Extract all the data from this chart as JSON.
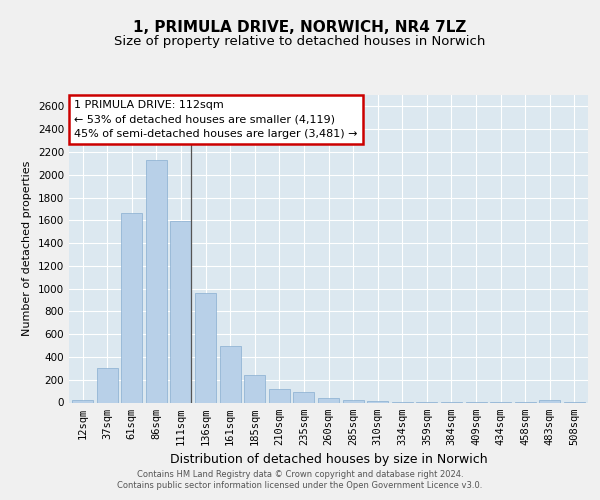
{
  "title_line1": "1, PRIMULA DRIVE, NORWICH, NR4 7LZ",
  "title_line2": "Size of property relative to detached houses in Norwich",
  "xlabel": "Distribution of detached houses by size in Norwich",
  "ylabel": "Number of detached properties",
  "categories": [
    "12sqm",
    "37sqm",
    "61sqm",
    "86sqm",
    "111sqm",
    "136sqm",
    "161sqm",
    "185sqm",
    "210sqm",
    "235sqm",
    "260sqm",
    "285sqm",
    "310sqm",
    "334sqm",
    "359sqm",
    "384sqm",
    "409sqm",
    "434sqm",
    "458sqm",
    "483sqm",
    "508sqm"
  ],
  "values": [
    20,
    300,
    1660,
    2130,
    1590,
    960,
    500,
    245,
    120,
    90,
    40,
    20,
    10,
    6,
    3,
    2,
    2,
    2,
    2,
    20,
    2
  ],
  "bar_color": "#b8d0e8",
  "bar_edge_color": "#88aed0",
  "ylim_max": 2700,
  "annotation_line1": "1 PRIMULA DRIVE: 112sqm",
  "annotation_line2": "← 53% of detached houses are smaller (4,119)",
  "annotation_line3": "45% of semi-detached houses are larger (3,481) →",
  "ann_box_facecolor": "#ffffff",
  "ann_box_edgecolor": "#cc0000",
  "footer_line1": "Contains HM Land Registry data © Crown copyright and database right 2024.",
  "footer_line2": "Contains public sector information licensed under the Open Government Licence v3.0.",
  "plot_bgcolor": "#dce8f0",
  "fig_bgcolor": "#f0f0f0",
  "grid_color": "#ffffff",
  "vline_index": 4,
  "title_fontsize": 11,
  "subtitle_fontsize": 9.5,
  "xlabel_fontsize": 9,
  "ylabel_fontsize": 8,
  "tick_fontsize": 7.5,
  "ann_fontsize": 8,
  "footer_fontsize": 6
}
